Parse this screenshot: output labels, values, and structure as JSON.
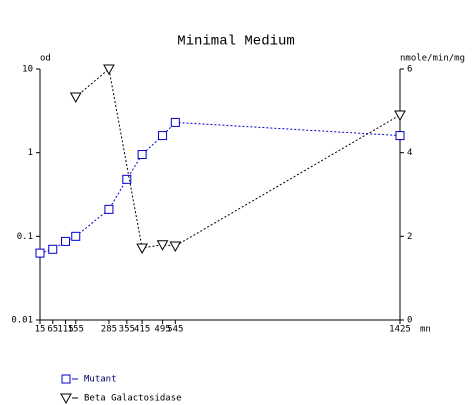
{
  "chart_data": {
    "type": "line",
    "title": "Minimal Medium",
    "y_label": "od",
    "y2_label": "nmole/min/mg",
    "x_label": "mn",
    "xlim": [
      15,
      1425
    ],
    "xticks": [
      15,
      65,
      115,
      155,
      285,
      355,
      415,
      495,
      545,
      1425
    ],
    "ylim": [
      0.01,
      10
    ],
    "yticks": [
      0.01,
      0.1,
      1,
      10
    ],
    "y_scale": "log",
    "y2lim": [
      0,
      6
    ],
    "y2ticks": [
      0,
      2,
      4,
      6
    ],
    "series": [
      {
        "name": "Mutant",
        "color": "#0000cc",
        "marker": "square",
        "axis": "y",
        "x": [
          15,
          65,
          115,
          155,
          285,
          355,
          415,
          495,
          545,
          1425
        ],
        "values": [
          0.063,
          0.07,
          0.087,
          0.1,
          0.21,
          0.48,
          0.95,
          1.6,
          2.3,
          1.6
        ]
      },
      {
        "name": "Beta Galactosidase",
        "color": "#000000",
        "marker": "triangle",
        "axis": "y2",
        "x": [
          155,
          285,
          415,
          495,
          545,
          1425
        ],
        "values": [
          5.33,
          6.0,
          1.72,
          1.8,
          1.77,
          4.9
        ]
      }
    ]
  }
}
